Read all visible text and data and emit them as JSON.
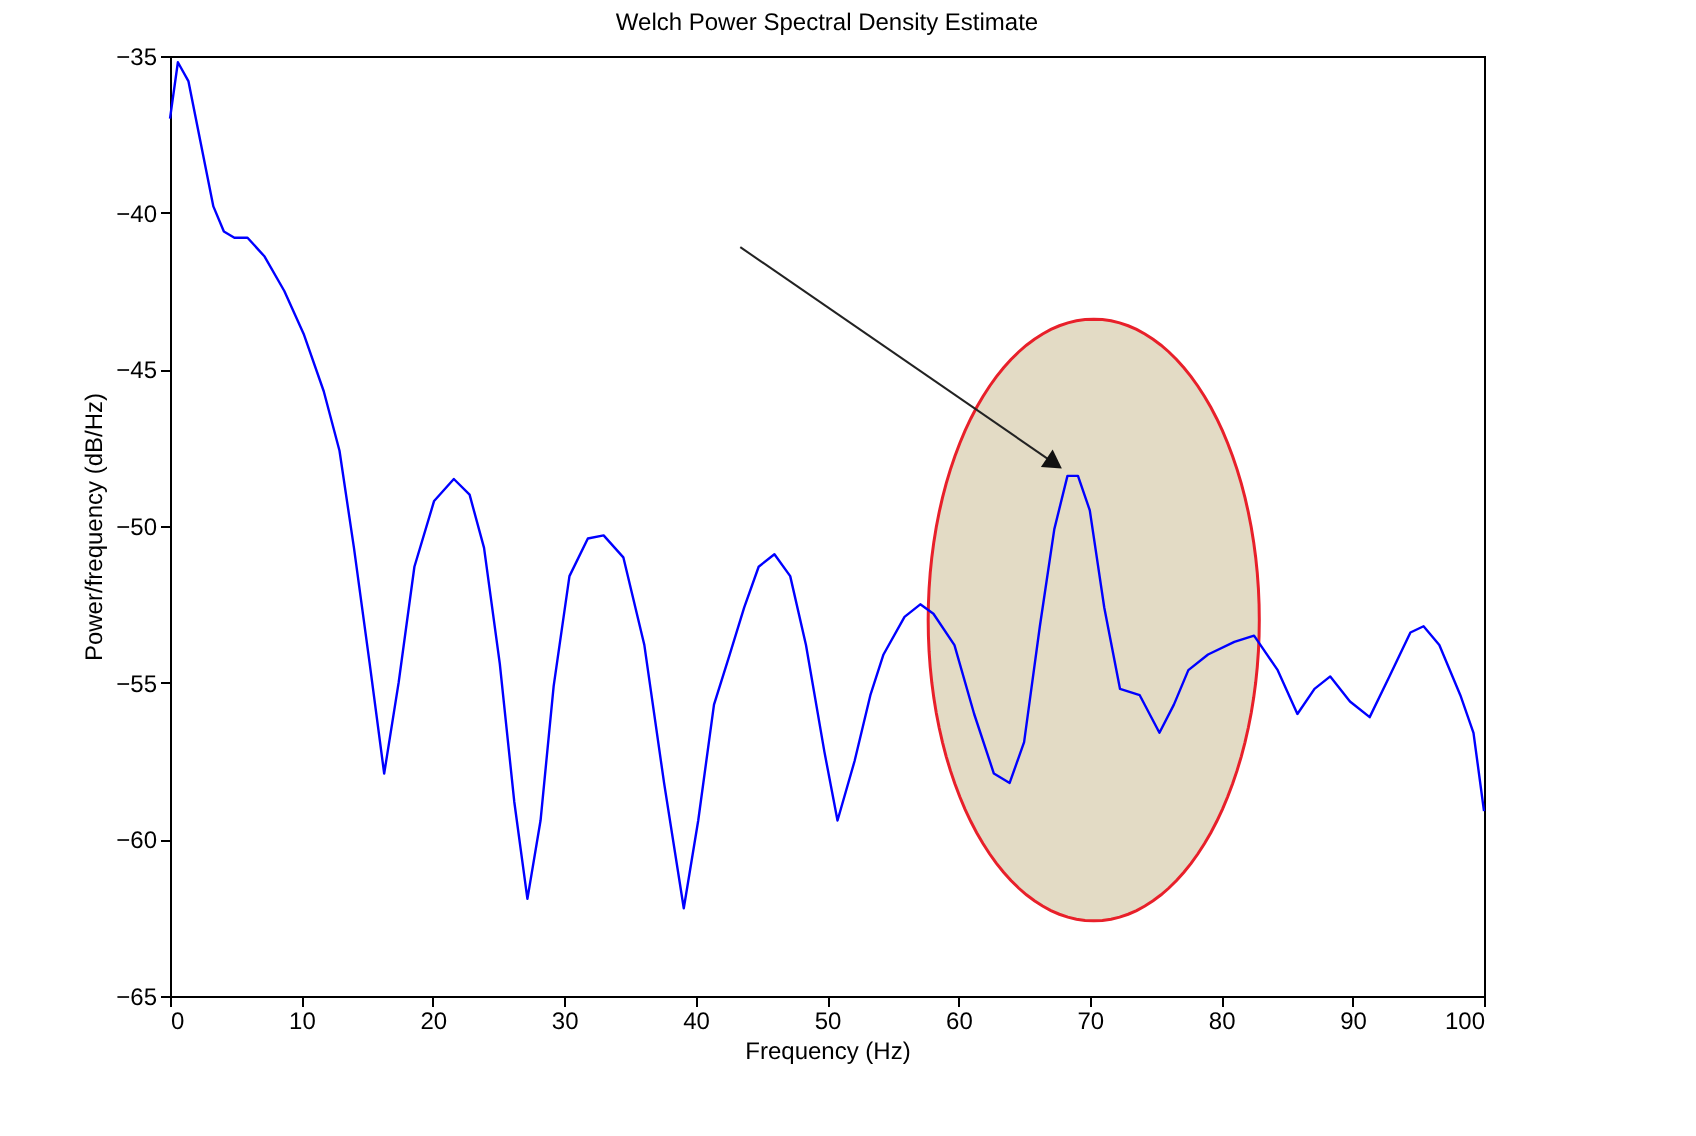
{
  "chart_data": {
    "type": "line",
    "title": "Welch Power Spectral Density Estimate",
    "xlabel": "Frequency (Hz)",
    "ylabel": "Power/frequency (dB/Hz)",
    "x": [
      0,
      0.6,
      1.4,
      2.3,
      3.3,
      4.1,
      4.9,
      5.9,
      7.2,
      8.7,
      10.2,
      11.7,
      12.9,
      14.0,
      15.2,
      16.3,
      17.4,
      18.6,
      20.1,
      21.6,
      22.8,
      23.9,
      25.1,
      26.2,
      27.2,
      28.2,
      29.2,
      30.4,
      31.8,
      33.0,
      34.5,
      36.1,
      37.6,
      39.1,
      40.2,
      41.4,
      42.6,
      43.7,
      44.8,
      46.0,
      47.2,
      48.4,
      49.8,
      50.8,
      52.1,
      53.3,
      54.3,
      55.9,
      57.1,
      58.1,
      59.7,
      61.2,
      62.7,
      63.9,
      65.0,
      66.2,
      67.3,
      68.3,
      69.1,
      70.0,
      71.1,
      72.3,
      73.8,
      75.3,
      76.4,
      77.5,
      79.0,
      81.0,
      82.5,
      84.3,
      85.8,
      87.1,
      88.3,
      89.8,
      91.3,
      92.8,
      94.4,
      95.4,
      96.6,
      98.2,
      99.2,
      100
    ],
    "series": [
      {
        "color": "#0000ff",
        "values": [
          -37.0,
          -35.2,
          -35.8,
          -37.7,
          -39.8,
          -40.6,
          -40.8,
          -40.8,
          -41.4,
          -42.5,
          -43.9,
          -45.7,
          -47.6,
          -50.7,
          -54.4,
          -57.9,
          -55.0,
          -51.3,
          -49.2,
          -48.5,
          -49.0,
          -50.7,
          -54.4,
          -58.8,
          -61.9,
          -59.4,
          -55.1,
          -51.6,
          -50.4,
          -50.3,
          -51.0,
          -53.8,
          -58.2,
          -62.2,
          -59.4,
          -55.7,
          -54.1,
          -52.6,
          -51.3,
          -50.9,
          -51.6,
          -53.8,
          -57.2,
          -59.4,
          -57.5,
          -55.4,
          -54.1,
          -52.9,
          -52.5,
          -52.8,
          -53.8,
          -56.0,
          -57.9,
          -58.2,
          -56.9,
          -53.2,
          -50.1,
          -48.4,
          -48.4,
          -49.5,
          -52.6,
          -55.2,
          -55.4,
          -56.6,
          -55.7,
          -54.6,
          -54.1,
          -53.7,
          -53.5,
          -54.6,
          -56.0,
          -55.2,
          -54.8,
          -55.6,
          -56.1,
          -54.8,
          -53.4,
          -53.2,
          -53.8,
          -55.4,
          -56.6,
          -59.1
        ]
      }
    ],
    "xlim": [
      0,
      100
    ],
    "xticks": [
      0,
      10,
      20,
      30,
      40,
      50,
      60,
      70,
      80,
      90,
      100
    ],
    "ylim": [
      -65,
      -35
    ],
    "yticks": [
      -65,
      -60,
      -55,
      -50,
      -45,
      -40,
      -35
    ],
    "grid": false,
    "marker": "none",
    "line_style": "solid"
  }
}
